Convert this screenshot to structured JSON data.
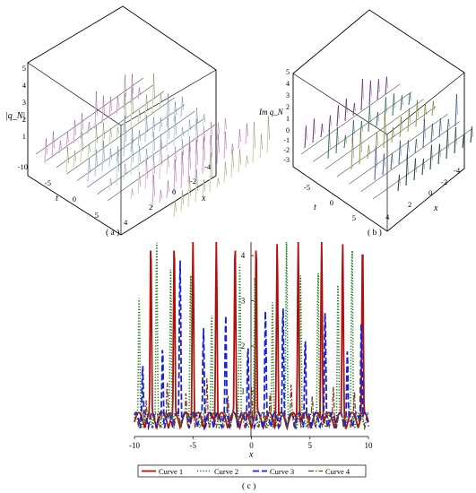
{
  "panel_a": {
    "z_label": "|q_N|",
    "z_ticks": [
      "1",
      "2",
      "3",
      "4",
      "5"
    ],
    "t_label": "t",
    "t_ticks": [
      "-10",
      "-5",
      "0",
      "5"
    ],
    "x_label": "x",
    "x_ticks": [
      "4",
      "2",
      "0",
      "-2",
      "-4"
    ],
    "caption": "( a )",
    "colors": [
      "#d9a0d8",
      "#c9d6a8",
      "#a9c6e8",
      "#b8e0e6",
      "#e7c2e0"
    ]
  },
  "panel_b": {
    "z_label": "Im q_N",
    "z_ticks": [
      "-3",
      "-2",
      "-1",
      "0",
      "1",
      "2",
      "3",
      "4",
      "5"
    ],
    "t_label": "t",
    "t_ticks": [
      "-5",
      "0",
      "5"
    ],
    "x_label": "x",
    "x_ticks": [
      "4",
      "2",
      "0",
      "-2",
      "-4"
    ],
    "caption": "( b )",
    "colors": [
      "#7a3a8a",
      "#3a7a6a",
      "#9aa04a",
      "#4a6a9a",
      "#2a4a3a"
    ]
  },
  "panel_c": {
    "caption": "( c )",
    "chart_data": {
      "type": "line",
      "xlabel": "x",
      "ylabel": "",
      "xlim": [
        -10,
        10
      ],
      "ylim": [
        0,
        4.3
      ],
      "x_ticks": [
        "-10",
        "-5",
        "0",
        "5",
        "10"
      ],
      "y_ticks": [
        "1",
        "2",
        "3",
        "4"
      ],
      "series": [
        {
          "name": "Curve 1",
          "color": "#b01010",
          "style": "solid",
          "peaks": [
            [
              -8.6,
              4.3
            ],
            [
              -6.6,
              4.3
            ],
            [
              -5.0,
              4.3
            ],
            [
              -3.0,
              4.3
            ],
            [
              -1.4,
              4.3
            ],
            [
              0.4,
              4.3
            ],
            [
              2.2,
              4.3
            ],
            [
              4.0,
              4.3
            ],
            [
              6.0,
              4.3
            ],
            [
              7.8,
              4.3
            ],
            [
              9.5,
              4.3
            ]
          ]
        },
        {
          "name": "Curve 2",
          "color": "#1a7a1a",
          "style": "dotted",
          "peaks": [
            [
              -9.6,
              3.2
            ],
            [
              -8.1,
              4.3
            ],
            [
              -6.9,
              3.7
            ],
            [
              -5.2,
              3.6
            ],
            [
              -3.4,
              2.8
            ],
            [
              -1.0,
              3.8
            ],
            [
              0.3,
              3.6
            ],
            [
              1.8,
              3.0
            ],
            [
              3.0,
              4.3
            ],
            [
              4.2,
              3.6
            ],
            [
              5.7,
              3.7
            ],
            [
              7.4,
              3.5
            ],
            [
              8.6,
              4.3
            ]
          ]
        },
        {
          "name": "Curve 3",
          "color": "#1a22c8",
          "style": "dashed",
          "peaks": [
            [
              -9.3,
              1.6
            ],
            [
              -7.6,
              2.0
            ],
            [
              -6.1,
              3.9
            ],
            [
              -4.1,
              2.4
            ],
            [
              -2.2,
              2.7
            ],
            [
              -0.3,
              2.0
            ],
            [
              1.2,
              2.8
            ],
            [
              2.7,
              2.9
            ],
            [
              4.6,
              2.2
            ],
            [
              6.3,
              2.8
            ],
            [
              8.2,
              1.9
            ],
            [
              9.4,
              2.6
            ]
          ]
        },
        {
          "name": "Curve 4",
          "color": "#7a3a1a",
          "style": "dashdot",
          "peaks": [
            [
              -9.0,
              0.8
            ],
            [
              -7.2,
              1.2
            ],
            [
              -5.6,
              1.0
            ],
            [
              -3.8,
              1.3
            ],
            [
              -2.0,
              0.9
            ],
            [
              0.0,
              1.1
            ],
            [
              1.6,
              1.0
            ],
            [
              3.4,
              1.2
            ],
            [
              5.2,
              0.9
            ],
            [
              7.0,
              1.1
            ],
            [
              8.8,
              1.0
            ]
          ]
        }
      ],
      "legend": [
        "Curve 1",
        "Curve 2",
        "Curve 3",
        "Curve 4"
      ],
      "legend_position": "bottom",
      "grid": false
    }
  }
}
